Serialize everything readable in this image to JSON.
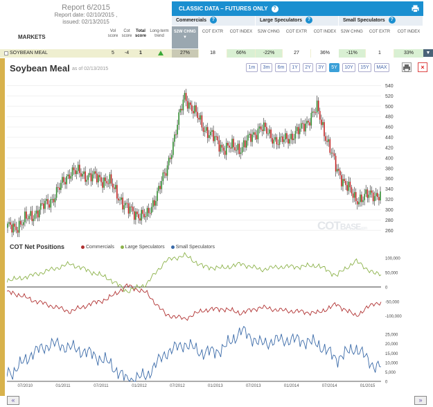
{
  "report": {
    "title": "Report 6/2015",
    "report_date": "Report date: 02/10/2015 ,",
    "issued": "issued: 02/13/2015"
  },
  "markets_label": "MARKETS",
  "left_headers": [
    {
      "label": "Vol score",
      "bold": false
    },
    {
      "label": "Cot score",
      "bold": false
    },
    {
      "label": "Total score",
      "bold": true
    },
    {
      "label": "Long-term trend",
      "bold": false
    }
  ],
  "classic": {
    "title": "CLASSIC DATA – FUTURES ONLY",
    "help_icon": "question-icon",
    "print_icon": "printer-icon"
  },
  "groups": [
    {
      "label": "Commercials",
      "subheads": [
        {
          "label": "52W CHNG",
          "active": true
        },
        {
          "label": "COT EXTR"
        },
        {
          "label": "COT INDEX"
        }
      ]
    },
    {
      "label": "Large Speculators",
      "subheads": [
        {
          "label": "52W CHNG"
        },
        {
          "label": "COT EXTR"
        },
        {
          "label": "COT INDEX"
        }
      ]
    },
    {
      "label": "Small Speculators",
      "subheads": [
        {
          "label": "52W CHNG"
        },
        {
          "label": "COT EXTR"
        },
        {
          "label": "COT INDEX"
        }
      ]
    }
  ],
  "row": {
    "name": "SOYBEAN MEAL",
    "vol_score": "5",
    "cot_score": "-4",
    "total_score": "1",
    "trend": "up-arrow-icon",
    "values": [
      "27%",
      "18",
      "66%",
      "-22%",
      "27",
      "36%",
      "-11%",
      "1",
      "33%"
    ]
  },
  "chart": {
    "title": "Soybean Meal",
    "as_of": "as of 02/13/2015",
    "ranges": [
      "1m",
      "3m",
      "6m",
      "1Y",
      "2Y",
      "3Y",
      "5Y",
      "10Y",
      "15Y",
      "MAX"
    ],
    "active_range": "5Y",
    "watermark": "COT",
    "watermark_small": "BASE",
    "watermark_tail": ".com"
  },
  "cot": {
    "title": "COT Net Positions",
    "legend": [
      {
        "label": "Commercials",
        "color": "#b03030"
      },
      {
        "label": "Large Speculators",
        "color": "#8cb24a"
      },
      {
        "label": "Small Speculators",
        "color": "#3a6aa8"
      }
    ]
  },
  "date_ticks": [
    "07/2010",
    "01/2011",
    "07/2011",
    "01/2012",
    "07/2012",
    "01/2013",
    "07/2013",
    "01/2014",
    "07/2014",
    "01/2015"
  ],
  "nav": {
    "prev": "«",
    "next": "»"
  },
  "chart_data": [
    {
      "type": "candlestick",
      "title": "Soybean Meal",
      "ylim": [
        255,
        550
      ],
      "yticks": [
        260,
        280,
        300,
        320,
        340,
        360,
        380,
        400,
        420,
        440,
        460,
        480,
        500,
        520,
        540
      ],
      "x": [
        "2010-05",
        "2010-08",
        "2010-11",
        "2011-02",
        "2011-05",
        "2011-08",
        "2011-11",
        "2012-02",
        "2012-05",
        "2012-08",
        "2012-11",
        "2013-02",
        "2013-05",
        "2013-08",
        "2013-11",
        "2014-02",
        "2014-05",
        "2014-08",
        "2014-11",
        "2015-02"
      ],
      "close": [
        265,
        290,
        320,
        375,
        365,
        355,
        300,
        285,
        370,
        520,
        460,
        420,
        420,
        460,
        430,
        450,
        495,
        380,
        320,
        330
      ]
    },
    {
      "type": "line",
      "title": "COT Net Positions",
      "yticks_top": [
        "100,000",
        "50,000",
        "0",
        "-50,000",
        "-100,000"
      ],
      "series": [
        {
          "name": "Commercials",
          "values": [
            -20000,
            -45000,
            -65000,
            -85000,
            -60000,
            -40000,
            5000,
            -20000,
            -95000,
            -110000,
            -80000,
            -75000,
            -90000,
            -70000,
            -80000,
            -85000,
            -90000,
            -60000,
            -100000,
            -55000
          ]
        },
        {
          "name": "Large Speculators",
          "values": [
            25000,
            40000,
            60000,
            80000,
            55000,
            30000,
            -15000,
            10000,
            90000,
            110000,
            70000,
            65000,
            80000,
            60000,
            70000,
            70000,
            75000,
            40000,
            90000,
            45000
          ]
        }
      ]
    },
    {
      "type": "line",
      "title": "Small Speculators",
      "yticks": [
        "25,000",
        "20,000",
        "15,000",
        "10,000",
        "5,000",
        "0"
      ],
      "series": [
        {
          "name": "Small Speculators",
          "values": [
            5000,
            15000,
            20000,
            18000,
            15000,
            10000,
            500,
            3000,
            15000,
            20000,
            15000,
            17000,
            27000,
            20000,
            22000,
            22000,
            20000,
            12000,
            18000,
            8000
          ]
        }
      ]
    }
  ]
}
